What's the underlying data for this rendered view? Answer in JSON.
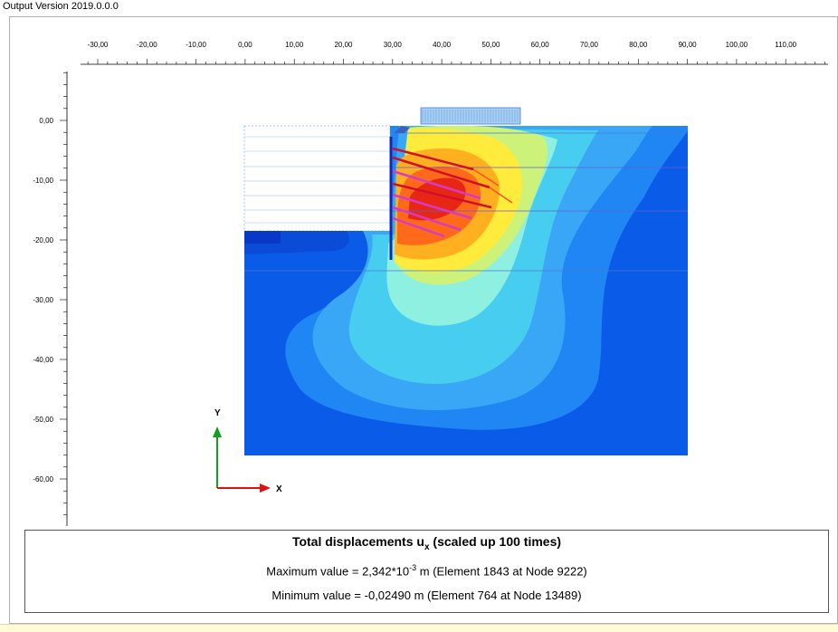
{
  "app": {
    "version_label": "Output Version 2019.0.0.0"
  },
  "ruler": {
    "x_ticks": [
      "-30,00",
      "-20,00",
      "-10,00",
      "0,00",
      "10,00",
      "20,00",
      "30,00",
      "40,00",
      "50,00",
      "60,00",
      "70,00",
      "80,00",
      "90,00",
      "100,00",
      "110,00"
    ],
    "y_ticks": [
      "0,00",
      "-10,00",
      "-20,00",
      "-30,00",
      "-40,00",
      "-50,00",
      "-60,00"
    ]
  },
  "axes": {
    "x_label": "X",
    "y_label": "Y"
  },
  "legend": {
    "title_prefix": "Total displacements u",
    "title_sub": "x",
    "title_suffix": " (scaled up 100 times)",
    "max_prefix": "Maximum value = 2,342*10",
    "max_exp": "-3",
    "max_suffix": " m (Element 1843 at Node 9222)",
    "min_text": "Minimum value = -0,02490 m (Element 764 at Node 13489)"
  },
  "colors": {
    "deep_blue": "#0a5ce8",
    "mid_blue": "#1f86f4",
    "light_blue": "#3aa7f6",
    "cyan": "#47cdf0",
    "pale_cyan": "#8ef0e0",
    "green_yellow": "#cdf27a",
    "yellow": "#ffeb3b",
    "orange": "#ffb020",
    "red_orange": "#ff6a1a",
    "red": "#e82616",
    "anchor_red": "#d0102a",
    "anchor_magenta": "#d63ac8"
  }
}
